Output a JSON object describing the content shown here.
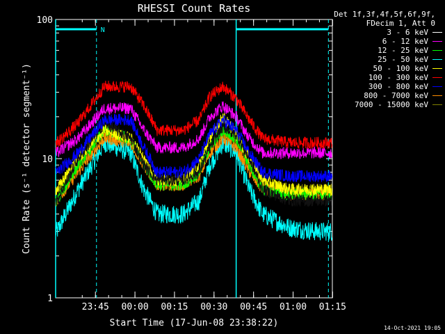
{
  "chart_data": {
    "type": "line",
    "title": "RHESSI Count Rates",
    "xlabel": "Start Time (17-Jun-08 23:38:22)",
    "ylabel": "Count Rate (s⁻¹ detector segment⁻¹)",
    "yscale": "log",
    "ylim": [
      1,
      100
    ],
    "xlim_minutes": [
      -8.5,
      96.5
    ],
    "x_ticks": [
      "23:45",
      "00:00",
      "00:15",
      "00:30",
      "00:45",
      "01:00",
      "01:15"
    ],
    "y_ticks": [
      "1",
      "10",
      "100"
    ],
    "legend_header": [
      "Det 1f,3f,4f,5f,6f,9f,",
      "FDecim 1, Att 0"
    ],
    "legend_position": "right",
    "timestamp": "14-Oct-2021 19:05",
    "markers": {
      "night_intervals_minutes": [
        [
          -8.5,
          7
        ],
        [
          60,
          95
        ]
      ],
      "cyan_vertical_lines_minutes": [
        -8.5,
        60
      ],
      "dashed_vertical_lines_minutes": [
        7,
        95
      ],
      "flag_label": "N"
    },
    "x_minutes": [
      -8,
      0,
      10,
      20,
      25,
      30,
      40,
      46,
      50,
      55,
      60,
      65,
      70,
      80,
      90,
      95
    ],
    "series": [
      {
        "name": "3 - 6 keV",
        "color": "#000000",
        "values": [
          5,
          10,
          18,
          14,
          9,
          7,
          7,
          8,
          12,
          17,
          15,
          10,
          6,
          5,
          5,
          5
        ]
      },
      {
        "name": "6 - 12 keV",
        "color": "#ff00ff",
        "values": [
          11,
          14,
          23,
          23,
          16,
          12,
          12,
          14,
          20,
          24,
          20,
          14,
          11,
          11,
          11,
          11
        ]
      },
      {
        "name": "12 - 25 keV",
        "color": "#00ff00",
        "values": [
          5,
          9,
          16,
          14,
          9,
          6.5,
          6.5,
          8,
          12,
          16,
          14,
          9,
          6,
          5.5,
          5.5,
          5.5
        ]
      },
      {
        "name": "25 - 50 keV",
        "color": "#00ffff",
        "values": [
          3,
          6,
          13,
          11,
          6,
          4,
          4,
          5,
          9,
          13,
          11,
          6,
          4,
          3.2,
          3,
          3
        ]
      },
      {
        "name": "50 - 100 keV",
        "color": "#ffff00",
        "values": [
          6,
          10,
          16,
          14,
          10,
          7,
          7,
          9,
          14,
          20,
          15,
          10,
          7,
          6,
          6,
          6
        ]
      },
      {
        "name": "100 - 300 keV",
        "color": "#ff0000",
        "values": [
          13,
          18,
          33,
          33,
          24,
          16,
          16,
          19,
          28,
          33,
          27,
          19,
          14,
          13,
          13,
          13
        ]
      },
      {
        "name": "300 - 800 keV",
        "color": "#0000ff",
        "values": [
          8,
          11,
          19,
          19,
          12,
          8,
          8,
          10,
          15,
          19,
          16,
          11,
          8,
          7.5,
          7.5,
          7.5
        ]
      },
      {
        "name": "800 - 7000 keV",
        "color": "#ff8c00",
        "values": [
          5,
          8,
          14,
          13,
          9,
          6.5,
          6.5,
          7.5,
          11,
          14,
          12,
          8,
          6,
          5.5,
          5.5,
          5.5
        ]
      },
      {
        "name": "7000 - 15000 keV",
        "color": "#808000",
        "values": [
          6,
          9,
          15,
          13,
          9,
          6.5,
          6.5,
          8,
          12,
          15,
          13,
          9,
          6.5,
          6,
          6,
          6
        ]
      }
    ]
  }
}
